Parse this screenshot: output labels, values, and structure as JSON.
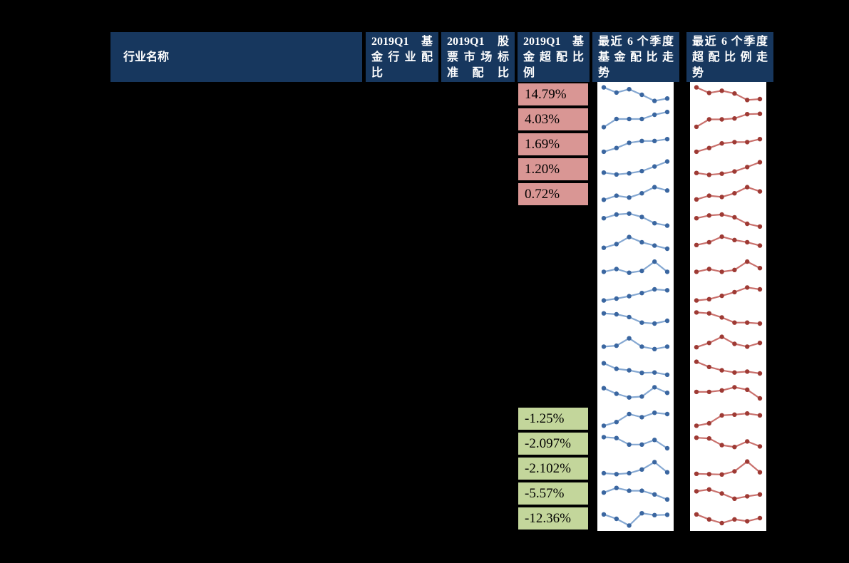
{
  "colors": {
    "page_bg": "#000000",
    "header_bg": "#17375e",
    "header_text": "#ffffff",
    "positive_cell_bg": "#d99694",
    "negative_cell_bg": "#c3d69b",
    "fund_spark_line": "#85a8d2",
    "fund_spark_marker": "#3a66a0",
    "over_spark_line": "#c9706c",
    "over_spark_marker": "#9e3a34"
  },
  "header": {
    "cells": [
      {
        "label": "行业名称"
      },
      {
        "label": "2019Q1 基\n金行业配\n比"
      },
      {
        "label": "2019Q1 股\n票市场标\n准配比"
      },
      {
        "label": "2019Q1 基\n金超配比\n例"
      },
      {
        "label": "最近 6 个季度\n基金配比走\n势"
      },
      {
        "label": "最近 6 个季度\n超配比例走\n势"
      }
    ]
  },
  "chart_data": {
    "type": "table",
    "columns": [
      "行业名称",
      "2019Q1 基金行业配比",
      "2019Q1 股票市场标准配比",
      "2019Q1 基金超配比例",
      "最近 6 个季度基金配比走势",
      "最近 6 个季度超配比例走势"
    ],
    "over_allocation_positive": [
      "14.79%",
      "4.03%",
      "1.69%",
      "1.20%",
      "0.72%"
    ],
    "over_allocation_negative": [
      "-1.25%",
      "-2.097%",
      "-2.102%",
      "-5.57%",
      "-12.36%"
    ],
    "sparkline_points_per_row": 6,
    "sparklines_fund_allocation": [
      [
        0.88,
        0.6,
        0.78,
        0.48,
        0.15,
        0.28
      ],
      [
        0.08,
        0.52,
        0.52,
        0.52,
        0.75,
        0.9
      ],
      [
        0.1,
        0.3,
        0.58,
        0.68,
        0.68,
        0.78
      ],
      [
        0.32,
        0.22,
        0.28,
        0.4,
        0.65,
        0.92
      ],
      [
        0.2,
        0.42,
        0.32,
        0.55,
        0.88,
        0.7
      ],
      [
        0.55,
        0.75,
        0.8,
        0.62,
        0.28,
        0.15
      ],
      [
        0.3,
        0.5,
        0.88,
        0.6,
        0.42,
        0.25
      ],
      [
        0.35,
        0.5,
        0.3,
        0.4,
        0.9,
        0.35
      ],
      [
        0.15,
        0.25,
        0.38,
        0.55,
        0.75,
        0.7
      ],
      [
        0.8,
        0.75,
        0.6,
        0.3,
        0.25,
        0.4
      ],
      [
        0.35,
        0.4,
        0.8,
        0.35,
        0.22,
        0.35
      ],
      [
        0.8,
        0.5,
        0.42,
        0.28,
        0.3,
        0.18
      ],
      [
        0.8,
        0.5,
        0.3,
        0.35,
        0.85,
        0.55
      ],
      [
        0.12,
        0.32,
        0.75,
        0.58,
        0.82,
        0.75
      ],
      [
        0.85,
        0.8,
        0.45,
        0.45,
        0.7,
        0.25
      ],
      [
        0.25,
        0.2,
        0.25,
        0.45,
        0.85,
        0.3
      ],
      [
        0.55,
        0.8,
        0.65,
        0.65,
        0.45,
        0.18
      ],
      [
        0.72,
        0.48,
        0.12,
        0.78,
        0.68,
        0.7
      ]
    ],
    "sparklines_over_allocation": [
      [
        0.88,
        0.58,
        0.7,
        0.55,
        0.2,
        0.25
      ],
      [
        0.1,
        0.5,
        0.5,
        0.55,
        0.78,
        0.8
      ],
      [
        0.1,
        0.3,
        0.55,
        0.62,
        0.62,
        0.78
      ],
      [
        0.3,
        0.2,
        0.26,
        0.38,
        0.62,
        0.88
      ],
      [
        0.22,
        0.42,
        0.35,
        0.55,
        0.88,
        0.65
      ],
      [
        0.55,
        0.7,
        0.75,
        0.6,
        0.25,
        0.1
      ],
      [
        0.45,
        0.6,
        0.9,
        0.72,
        0.6,
        0.42
      ],
      [
        0.35,
        0.5,
        0.35,
        0.45,
        0.9,
        0.55
      ],
      [
        0.15,
        0.22,
        0.4,
        0.6,
        0.85,
        0.75
      ],
      [
        0.85,
        0.8,
        0.58,
        0.3,
        0.3,
        0.25
      ],
      [
        0.32,
        0.55,
        0.88,
        0.5,
        0.35,
        0.55
      ],
      [
        0.88,
        0.6,
        0.42,
        0.3,
        0.35,
        0.25
      ],
      [
        0.6,
        0.6,
        0.68,
        0.85,
        0.72,
        0.25
      ],
      [
        0.12,
        0.25,
        0.68,
        0.72,
        0.78,
        0.68
      ],
      [
        0.82,
        0.78,
        0.42,
        0.32,
        0.62,
        0.35
      ],
      [
        0.22,
        0.2,
        0.18,
        0.35,
        0.88,
        0.3
      ],
      [
        0.62,
        0.72,
        0.5,
        0.22,
        0.35,
        0.45
      ],
      [
        0.72,
        0.45,
        0.25,
        0.45,
        0.35,
        0.52
      ]
    ]
  }
}
